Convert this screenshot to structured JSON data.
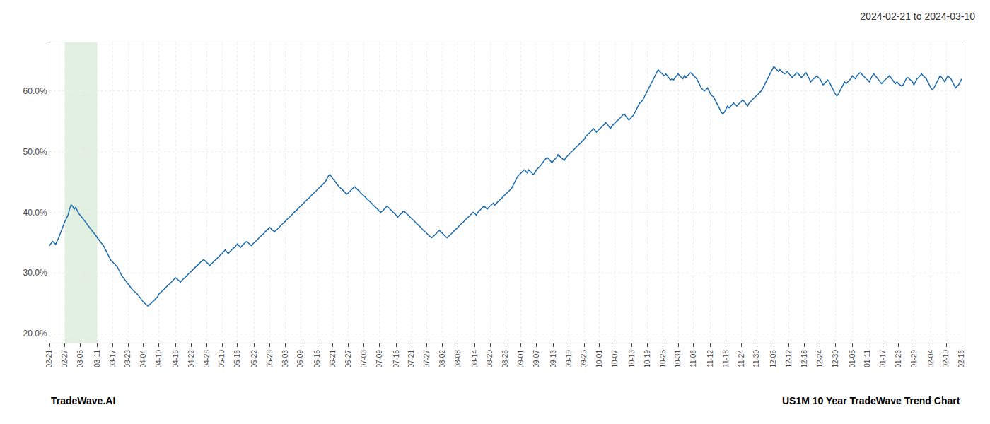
{
  "chart_data": {
    "type": "line",
    "title": "2024-02-21 to 2024-03-10",
    "annotations": [
      "TradeWave.AI",
      "US1M 10 Year TradeWave Trend Chart"
    ],
    "color": "#1a6aad",
    "grid": true,
    "ylim": [
      18.5,
      68.0
    ],
    "yticks": [
      {
        "value": 20.0,
        "label": "20.0%"
      },
      {
        "value": 30.0,
        "label": "30.0%"
      },
      {
        "value": 40.0,
        "label": "40.0%"
      },
      {
        "value": 50.0,
        "label": "50.0%"
      },
      {
        "value": 60.0,
        "label": "60.0%"
      }
    ],
    "shaded": {
      "from": "02-27",
      "to": "03-11",
      "color": "#d6ead6"
    },
    "categories": [
      "02-21",
      null,
      null,
      null,
      null,
      null,
      null,
      null,
      null,
      null,
      "02-27",
      null,
      null,
      null,
      null,
      null,
      null,
      null,
      null,
      null,
      "03-05",
      null,
      null,
      null,
      null,
      null,
      null,
      null,
      null,
      null,
      null,
      "03-11",
      null,
      null,
      null,
      null,
      null,
      null,
      null,
      null,
      null,
      "03-17",
      null,
      null,
      null,
      null,
      null,
      null,
      null,
      null,
      null,
      "03-23",
      null,
      null,
      null,
      null,
      null,
      null,
      null,
      null,
      null,
      "04-04",
      null,
      null,
      null,
      null,
      null,
      null,
      null,
      null,
      null,
      "04-10",
      null,
      null,
      null,
      null,
      null,
      null,
      null,
      null,
      null,
      null,
      "04-16",
      null,
      null,
      null,
      null,
      null,
      null,
      null,
      null,
      null,
      "04-22",
      null,
      null,
      null,
      null,
      null,
      null,
      null,
      null,
      null,
      "04-28",
      null,
      null,
      null,
      null,
      null,
      null,
      null,
      null,
      null,
      "05-10",
      null,
      null,
      null,
      null,
      null,
      null,
      null,
      null,
      null,
      "05-16",
      null,
      null,
      null,
      null,
      null,
      null,
      null,
      null,
      null,
      null,
      "05-22",
      null,
      null,
      null,
      null,
      null,
      null,
      null,
      null,
      null,
      "05-28",
      null,
      null,
      null,
      null,
      null,
      null,
      null,
      null,
      null,
      "06-03",
      null,
      null,
      null,
      null,
      null,
      null,
      null,
      null,
      null,
      "06-09",
      null,
      null,
      null,
      null,
      null,
      null,
      null,
      null,
      null,
      null,
      "06-15",
      null,
      null,
      null,
      null,
      null,
      null,
      null,
      null,
      null,
      "06-21",
      null,
      null,
      null,
      null,
      null,
      null,
      null,
      null,
      null,
      "06-27",
      null,
      null,
      null,
      null,
      null,
      null,
      null,
      null,
      null,
      "07-03",
      null,
      null,
      null,
      null,
      null,
      null,
      null,
      null,
      null,
      "07-09",
      null,
      null,
      null,
      null,
      null,
      null,
      null,
      null,
      null,
      null,
      "07-15",
      null,
      null,
      null,
      null,
      null,
      null,
      null,
      null,
      null,
      "07-21",
      null,
      null,
      null,
      null,
      null,
      null,
      null,
      null,
      null,
      "07-27",
      null,
      null,
      null,
      null,
      null,
      null,
      null,
      null,
      null,
      "08-02",
      null,
      null,
      null,
      null,
      null,
      null,
      null,
      null,
      null,
      "08-08",
      null,
      null,
      null,
      null,
      null,
      null,
      null,
      null,
      null,
      null,
      "08-14",
      null,
      null,
      null,
      null,
      null,
      null,
      null,
      null,
      null,
      "08-20",
      null,
      null,
      null,
      null,
      null,
      null,
      null,
      null,
      null,
      "08-26",
      null,
      null,
      null,
      null,
      null,
      null,
      null,
      null,
      null,
      "09-01",
      null,
      null,
      null,
      null,
      null,
      null,
      null,
      null,
      null,
      "09-07",
      null,
      null,
      null,
      null,
      null,
      null,
      null,
      null,
      null,
      null,
      "09-13",
      null,
      null,
      null,
      null,
      null,
      null,
      null,
      null,
      null,
      "09-19",
      null,
      null,
      null,
      null,
      null,
      null,
      null,
      null,
      null,
      "09-25",
      null,
      null,
      null,
      null,
      null,
      null,
      null,
      null,
      null,
      "10-01",
      null,
      null,
      null,
      null,
      null,
      null,
      null,
      null,
      null,
      "10-07",
      null,
      null,
      null,
      null,
      null,
      null,
      null,
      null,
      null,
      null,
      "10-13",
      null,
      null,
      null,
      null,
      null,
      null,
      null,
      null,
      null,
      "10-19",
      null,
      null,
      null,
      null,
      null,
      null,
      null,
      null,
      null,
      "10-25",
      null,
      null,
      null,
      null,
      null,
      null,
      null,
      null,
      null,
      "10-31",
      null,
      null,
      null,
      null,
      null,
      null,
      null,
      null,
      null,
      "11-06",
      null,
      null,
      null,
      null,
      null,
      null,
      null,
      null,
      null,
      null,
      "11-12",
      null,
      null,
      null,
      null,
      null,
      null,
      null,
      null,
      null,
      "11-18",
      null,
      null,
      null,
      null,
      null,
      null,
      null,
      null,
      null,
      "11-24",
      null,
      null,
      null,
      null,
      null,
      null,
      null,
      null,
      null,
      "11-30",
      null,
      null,
      null,
      null,
      null,
      null,
      null,
      null,
      null,
      null,
      "12-06",
      null,
      null,
      null,
      null,
      null,
      null,
      null,
      null,
      null,
      "12-12",
      null,
      null,
      null,
      null,
      null,
      null,
      null,
      null,
      null,
      "12-18",
      null,
      null,
      null,
      null,
      null,
      null,
      null,
      null,
      null,
      "12-24",
      null,
      null,
      null,
      null,
      null,
      null,
      null,
      null,
      null,
      "12-30",
      null,
      null,
      null,
      null,
      null,
      null,
      null,
      null,
      null,
      null,
      "01-05",
      null,
      null,
      null,
      null,
      null,
      null,
      null,
      null,
      null,
      "01-11",
      null,
      null,
      null,
      null,
      null,
      null,
      null,
      null,
      null,
      "01-17",
      null,
      null,
      null,
      null,
      null,
      null,
      null,
      null,
      null,
      "01-23",
      null,
      null,
      null,
      null,
      null,
      null,
      null,
      null,
      null,
      "01-29",
      null,
      null,
      null,
      null,
      null,
      null,
      null,
      null,
      null,
      null,
      "02-04",
      null,
      null,
      null,
      null,
      null,
      null,
      null,
      null,
      null,
      "02-10",
      null,
      null,
      null,
      null,
      null,
      null,
      null,
      null,
      null,
      "02-16"
    ],
    "values": [
      34.5,
      34.8,
      35.2,
      35.0,
      34.7,
      35.3,
      35.8,
      36.5,
      37.2,
      37.8,
      38.5,
      39.0,
      39.5,
      40.5,
      41.2,
      41.0,
      40.5,
      40.8,
      40.3,
      39.8,
      39.5,
      39.2,
      38.8,
      38.5,
      38.2,
      37.8,
      37.5,
      37.2,
      36.8,
      36.5,
      36.2,
      35.8,
      35.5,
      35.2,
      34.8,
      34.5,
      34.0,
      33.5,
      33.0,
      32.5,
      32.0,
      31.8,
      31.5,
      31.2,
      31.0,
      30.5,
      30.0,
      29.5,
      29.2,
      28.8,
      28.5,
      28.2,
      27.8,
      27.5,
      27.2,
      27.0,
      26.8,
      26.5,
      26.2,
      25.8,
      25.5,
      25.2,
      25.0,
      24.8,
      24.5,
      24.8,
      25.0,
      25.2,
      25.5,
      25.8,
      26.0,
      26.5,
      26.8,
      27.0,
      27.2,
      27.5,
      27.8,
      28.0,
      28.2,
      28.5,
      28.8,
      29.0,
      29.2,
      29.0,
      28.8,
      28.5,
      28.8,
      29.0,
      29.2,
      29.5,
      29.8,
      30.0,
      30.2,
      30.5,
      30.8,
      31.0,
      31.2,
      31.5,
      31.8,
      32.0,
      32.2,
      32.0,
      31.8,
      31.5,
      31.2,
      31.5,
      31.8,
      32.0,
      32.2,
      32.5,
      32.8,
      33.0,
      33.2,
      33.5,
      33.8,
      33.5,
      33.2,
      33.5,
      33.8,
      34.0,
      34.2,
      34.5,
      34.8,
      34.5,
      34.2,
      34.5,
      34.8,
      35.0,
      35.2,
      35.0,
      34.8,
      34.5,
      34.8,
      35.0,
      35.2,
      35.5,
      35.8,
      36.0,
      36.2,
      36.5,
      36.8,
      37.0,
      37.2,
      37.5,
      37.2,
      37.0,
      36.8,
      37.0,
      37.2,
      37.5,
      37.8,
      38.0,
      38.2,
      38.5,
      38.8,
      39.0,
      39.2,
      39.5,
      39.8,
      40.0,
      40.2,
      40.5,
      40.8,
      41.0,
      41.2,
      41.5,
      41.8,
      42.0,
      42.2,
      42.5,
      42.8,
      43.0,
      43.2,
      43.5,
      43.8,
      44.0,
      44.2,
      44.5,
      44.8,
      45.0,
      45.5,
      46.0,
      46.2,
      45.8,
      45.5,
      45.2,
      44.8,
      44.5,
      44.2,
      44.0,
      43.8,
      43.5,
      43.2,
      43.0,
      43.2,
      43.5,
      43.8,
      44.0,
      44.2,
      44.0,
      43.8,
      43.5,
      43.2,
      43.0,
      42.8,
      42.5,
      42.2,
      42.0,
      41.8,
      41.5,
      41.2,
      41.0,
      40.8,
      40.5,
      40.2,
      40.0,
      40.2,
      40.5,
      40.8,
      41.0,
      40.8,
      40.5,
      40.2,
      40.0,
      39.8,
      39.5,
      39.2,
      39.5,
      39.8,
      40.0,
      40.2,
      40.0,
      39.8,
      39.5,
      39.2,
      39.0,
      38.8,
      38.5,
      38.2,
      38.0,
      37.8,
      37.5,
      37.2,
      37.0,
      36.8,
      36.5,
      36.2,
      36.0,
      35.8,
      36.0,
      36.2,
      36.5,
      36.8,
      37.0,
      36.8,
      36.5,
      36.2,
      36.0,
      35.8,
      36.0,
      36.2,
      36.5,
      36.8,
      37.0,
      37.2,
      37.5,
      37.8,
      38.0,
      38.2,
      38.5,
      38.8,
      39.0,
      39.2,
      39.5,
      39.8,
      40.0,
      39.8,
      39.5,
      40.0,
      40.2,
      40.5,
      40.8,
      41.0,
      40.8,
      40.5,
      40.8,
      41.0,
      41.2,
      41.5,
      41.2,
      41.5,
      41.8,
      42.0,
      42.2,
      42.5,
      42.8,
      43.0,
      43.2,
      43.5,
      43.8,
      44.0,
      44.5,
      45.0,
      45.5,
      46.0,
      46.2,
      46.5,
      46.8,
      47.0,
      46.8,
      46.5,
      47.0,
      46.8,
      46.5,
      46.2,
      46.5,
      47.0,
      47.2,
      47.5,
      47.8,
      48.2,
      48.5,
      48.8,
      49.0,
      48.8,
      48.5,
      48.2,
      48.5,
      48.8,
      49.0,
      49.5,
      49.2,
      49.0,
      48.8,
      48.5,
      49.0,
      49.2,
      49.5,
      49.8,
      50.0,
      50.2,
      50.5,
      50.8,
      51.0,
      51.2,
      51.5,
      51.8,
      52.0,
      52.5,
      52.8,
      53.0,
      53.2,
      53.5,
      53.8,
      53.5,
      53.2,
      53.5,
      53.8,
      54.0,
      54.2,
      54.5,
      54.8,
      54.5,
      54.2,
      53.8,
      54.2,
      54.5,
      54.8,
      55.0,
      55.2,
      55.5,
      55.8,
      56.0,
      56.2,
      55.8,
      55.5,
      55.2,
      55.5,
      55.8,
      56.0,
      56.5,
      57.0,
      57.5,
      58.0,
      58.2,
      58.5,
      59.0,
      59.5,
      60.0,
      60.5,
      61.0,
      61.5,
      62.0,
      62.5,
      63.0,
      63.5,
      63.2,
      63.0,
      62.8,
      62.5,
      62.8,
      62.5,
      62.2,
      61.8,
      62.0,
      61.8,
      62.2,
      62.5,
      62.8,
      62.5,
      62.2,
      62.0,
      62.5,
      62.2,
      62.5,
      62.8,
      63.0,
      62.8,
      62.5,
      62.2,
      62.0,
      61.5,
      61.0,
      60.5,
      60.2,
      60.0,
      60.2,
      60.5,
      60.0,
      59.5,
      59.2,
      59.0,
      58.5,
      58.0,
      57.5,
      57.0,
      56.5,
      56.2,
      56.5,
      57.0,
      57.5,
      57.2,
      57.5,
      57.8,
      58.0,
      57.8,
      57.5,
      57.8,
      58.0,
      58.2,
      58.5,
      58.2,
      57.8,
      57.5,
      58.0,
      58.2,
      58.5,
      58.8,
      59.0,
      59.2,
      59.5,
      59.8,
      60.0,
      60.5,
      61.0,
      61.5,
      62.0,
      62.5,
      63.0,
      63.5,
      64.0,
      63.8,
      63.5,
      63.2,
      63.5,
      63.2,
      63.0,
      62.8,
      63.0,
      63.2,
      62.8,
      62.5,
      62.2,
      62.5,
      62.8,
      63.0,
      62.8,
      62.5,
      62.2,
      62.5,
      62.8,
      63.0,
      62.5,
      62.0,
      61.5,
      61.8,
      62.0,
      62.2,
      62.5,
      62.2,
      62.0,
      61.5,
      61.0,
      61.2,
      61.5,
      61.8,
      61.5,
      61.0,
      60.5,
      60.0,
      59.5,
      59.2,
      59.5,
      60.0,
      60.5,
      61.0,
      61.5,
      61.2,
      61.5,
      61.8,
      62.0,
      62.5,
      62.2,
      62.0,
      62.5,
      62.8,
      63.0,
      62.8,
      62.5,
      62.2,
      62.0,
      61.8,
      61.5,
      62.0,
      62.5,
      62.8,
      62.5,
      62.2,
      61.8,
      61.5,
      61.2,
      61.5,
      61.8,
      62.0,
      62.2,
      62.5,
      62.2,
      61.8,
      61.5,
      61.2,
      61.5,
      61.2,
      61.0,
      60.8,
      61.0,
      61.5,
      62.0,
      62.2,
      62.0,
      61.8,
      61.5,
      61.0,
      61.5,
      62.0,
      62.2,
      62.5,
      62.8,
      62.5,
      62.2,
      62.0,
      61.5,
      61.0,
      60.5,
      60.2,
      60.5,
      61.0,
      61.5,
      62.0,
      62.5,
      62.2,
      61.8,
      61.5,
      62.0,
      62.5,
      62.2,
      62.0,
      61.5,
      61.0,
      60.5,
      60.8,
      61.0,
      61.5,
      62.0
    ]
  }
}
